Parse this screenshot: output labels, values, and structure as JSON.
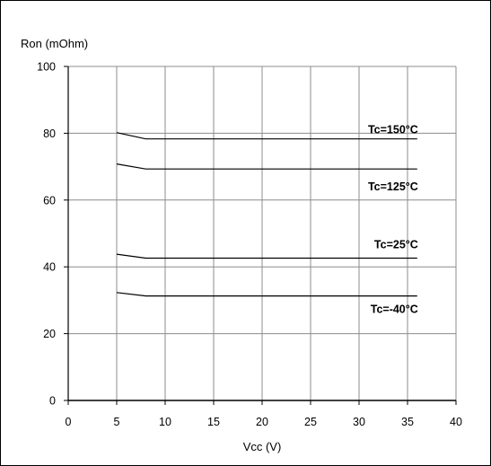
{
  "chart_data": {
    "type": "line",
    "ylabel": "Ron (mOhm)",
    "xlabel": "Vcc (V)",
    "xlim": [
      0,
      40
    ],
    "ylim": [
      0,
      100
    ],
    "xticks": [
      0,
      5,
      10,
      15,
      20,
      25,
      30,
      35,
      40
    ],
    "yticks": [
      0,
      20,
      40,
      60,
      80,
      100
    ],
    "grid": true,
    "series": [
      {
        "name": "Tc=150°C",
        "x": [
          5,
          8,
          36
        ],
        "y": [
          80.2,
          78.3,
          78.3
        ]
      },
      {
        "name": "Tc=125°C",
        "x": [
          5,
          8,
          36
        ],
        "y": [
          70.8,
          69.3,
          69.3
        ]
      },
      {
        "name": "Tc=25°C",
        "x": [
          5,
          8,
          36
        ],
        "y": [
          43.8,
          42.6,
          42.6
        ]
      },
      {
        "name": "Tc=-40°C",
        "x": [
          5,
          8,
          36
        ],
        "y": [
          32.3,
          31.3,
          31.3
        ]
      }
    ]
  }
}
